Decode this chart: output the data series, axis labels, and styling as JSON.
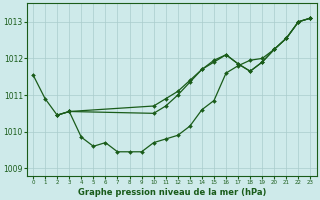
{
  "xlabel": "Graphe pression niveau de la mer (hPa)",
  "background_color": "#ceeaea",
  "grid_color": "#aacccc",
  "line_color": "#1a5c1a",
  "xlim": [
    -0.5,
    23.5
  ],
  "ylim": [
    1008.8,
    1013.5
  ],
  "yticks": [
    1009,
    1010,
    1011,
    1012,
    1013
  ],
  "xticks": [
    0,
    1,
    2,
    3,
    4,
    5,
    6,
    7,
    8,
    9,
    10,
    11,
    12,
    13,
    14,
    15,
    16,
    17,
    18,
    19,
    20,
    21,
    22,
    23
  ],
  "series": [
    {
      "x": [
        0,
        1,
        2,
        3,
        4,
        5,
        6,
        7,
        8,
        9,
        10,
        11,
        12,
        13,
        14,
        15,
        16,
        17,
        18,
        19,
        20,
        21,
        22,
        23
      ],
      "y": [
        1011.55,
        1010.9,
        1010.45,
        1010.55,
        1009.85,
        1009.6,
        1009.7,
        1009.45,
        1009.45,
        1009.45,
        1009.7,
        1009.8,
        1009.9,
        1010.15,
        1010.6,
        1010.85,
        1011.6,
        1011.8,
        1011.95,
        1012.0,
        1012.25,
        1012.55,
        1013.0,
        1013.1
      ]
    },
    {
      "x": [
        2,
        3,
        10,
        11,
        12,
        13,
        14,
        15,
        16,
        17,
        18,
        19,
        20,
        21,
        22,
        23
      ],
      "y": [
        1010.45,
        1010.55,
        1010.5,
        1010.7,
        1011.0,
        1011.35,
        1011.7,
        1011.9,
        1012.1,
        1011.85,
        1011.65,
        1011.9,
        1012.25,
        1012.55,
        1013.0,
        1013.1
      ]
    },
    {
      "x": [
        2,
        3,
        10,
        11,
        12,
        13,
        14,
        15,
        16,
        17,
        18,
        19,
        20,
        21,
        22,
        23
      ],
      "y": [
        1010.45,
        1010.55,
        1010.7,
        1010.9,
        1011.1,
        1011.4,
        1011.7,
        1011.95,
        1012.1,
        1011.85,
        1011.65,
        1011.9,
        1012.25,
        1012.55,
        1013.0,
        1013.1
      ]
    }
  ],
  "marker": "D",
  "markersize": 2.0,
  "linewidth": 0.9
}
